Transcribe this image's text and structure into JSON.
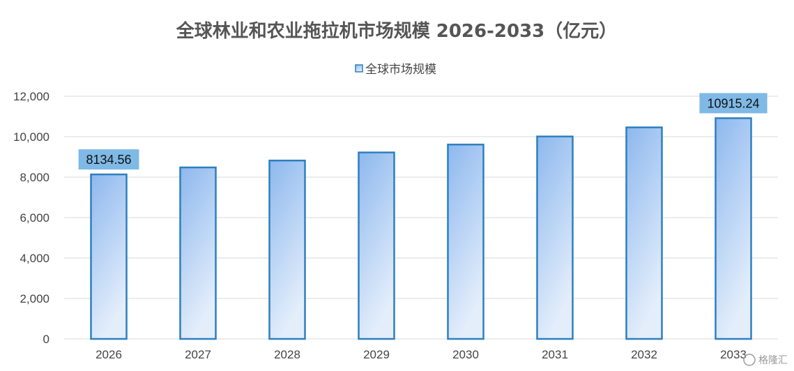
{
  "chart_data": {
    "type": "bar",
    "title": "全球林业和农业拖拉机市场规模 2026-2033（亿元）",
    "legend": "top",
    "grid": true,
    "categories": [
      "2026",
      "2027",
      "2028",
      "2029",
      "2030",
      "2031",
      "2032",
      "2033"
    ],
    "series": [
      {
        "name": "全球市场规模",
        "values": [
          8134.56,
          8480,
          8820,
          9220,
          9610,
          10010,
          10460,
          10915.24
        ]
      }
    ],
    "data_labels": [
      {
        "category": "2026",
        "text": "8134.56"
      },
      {
        "category": "2033",
        "text": "10915.24"
      }
    ],
    "y_ticks": [
      "0",
      "2,000",
      "4,000",
      "6,000",
      "8,000",
      "10,000",
      "12,000"
    ],
    "ylim": [
      0,
      12000
    ],
    "xlabel": "",
    "ylabel": "",
    "colors": {
      "bar_top": "#8db8ee",
      "bar_bottom": "#e4eefb",
      "bar_border": "#2e7fbf",
      "label_bg": "#7fb9e6"
    }
  },
  "watermark": {
    "text": "格隆汇",
    "icon": "gelonghui-logo-icon"
  }
}
